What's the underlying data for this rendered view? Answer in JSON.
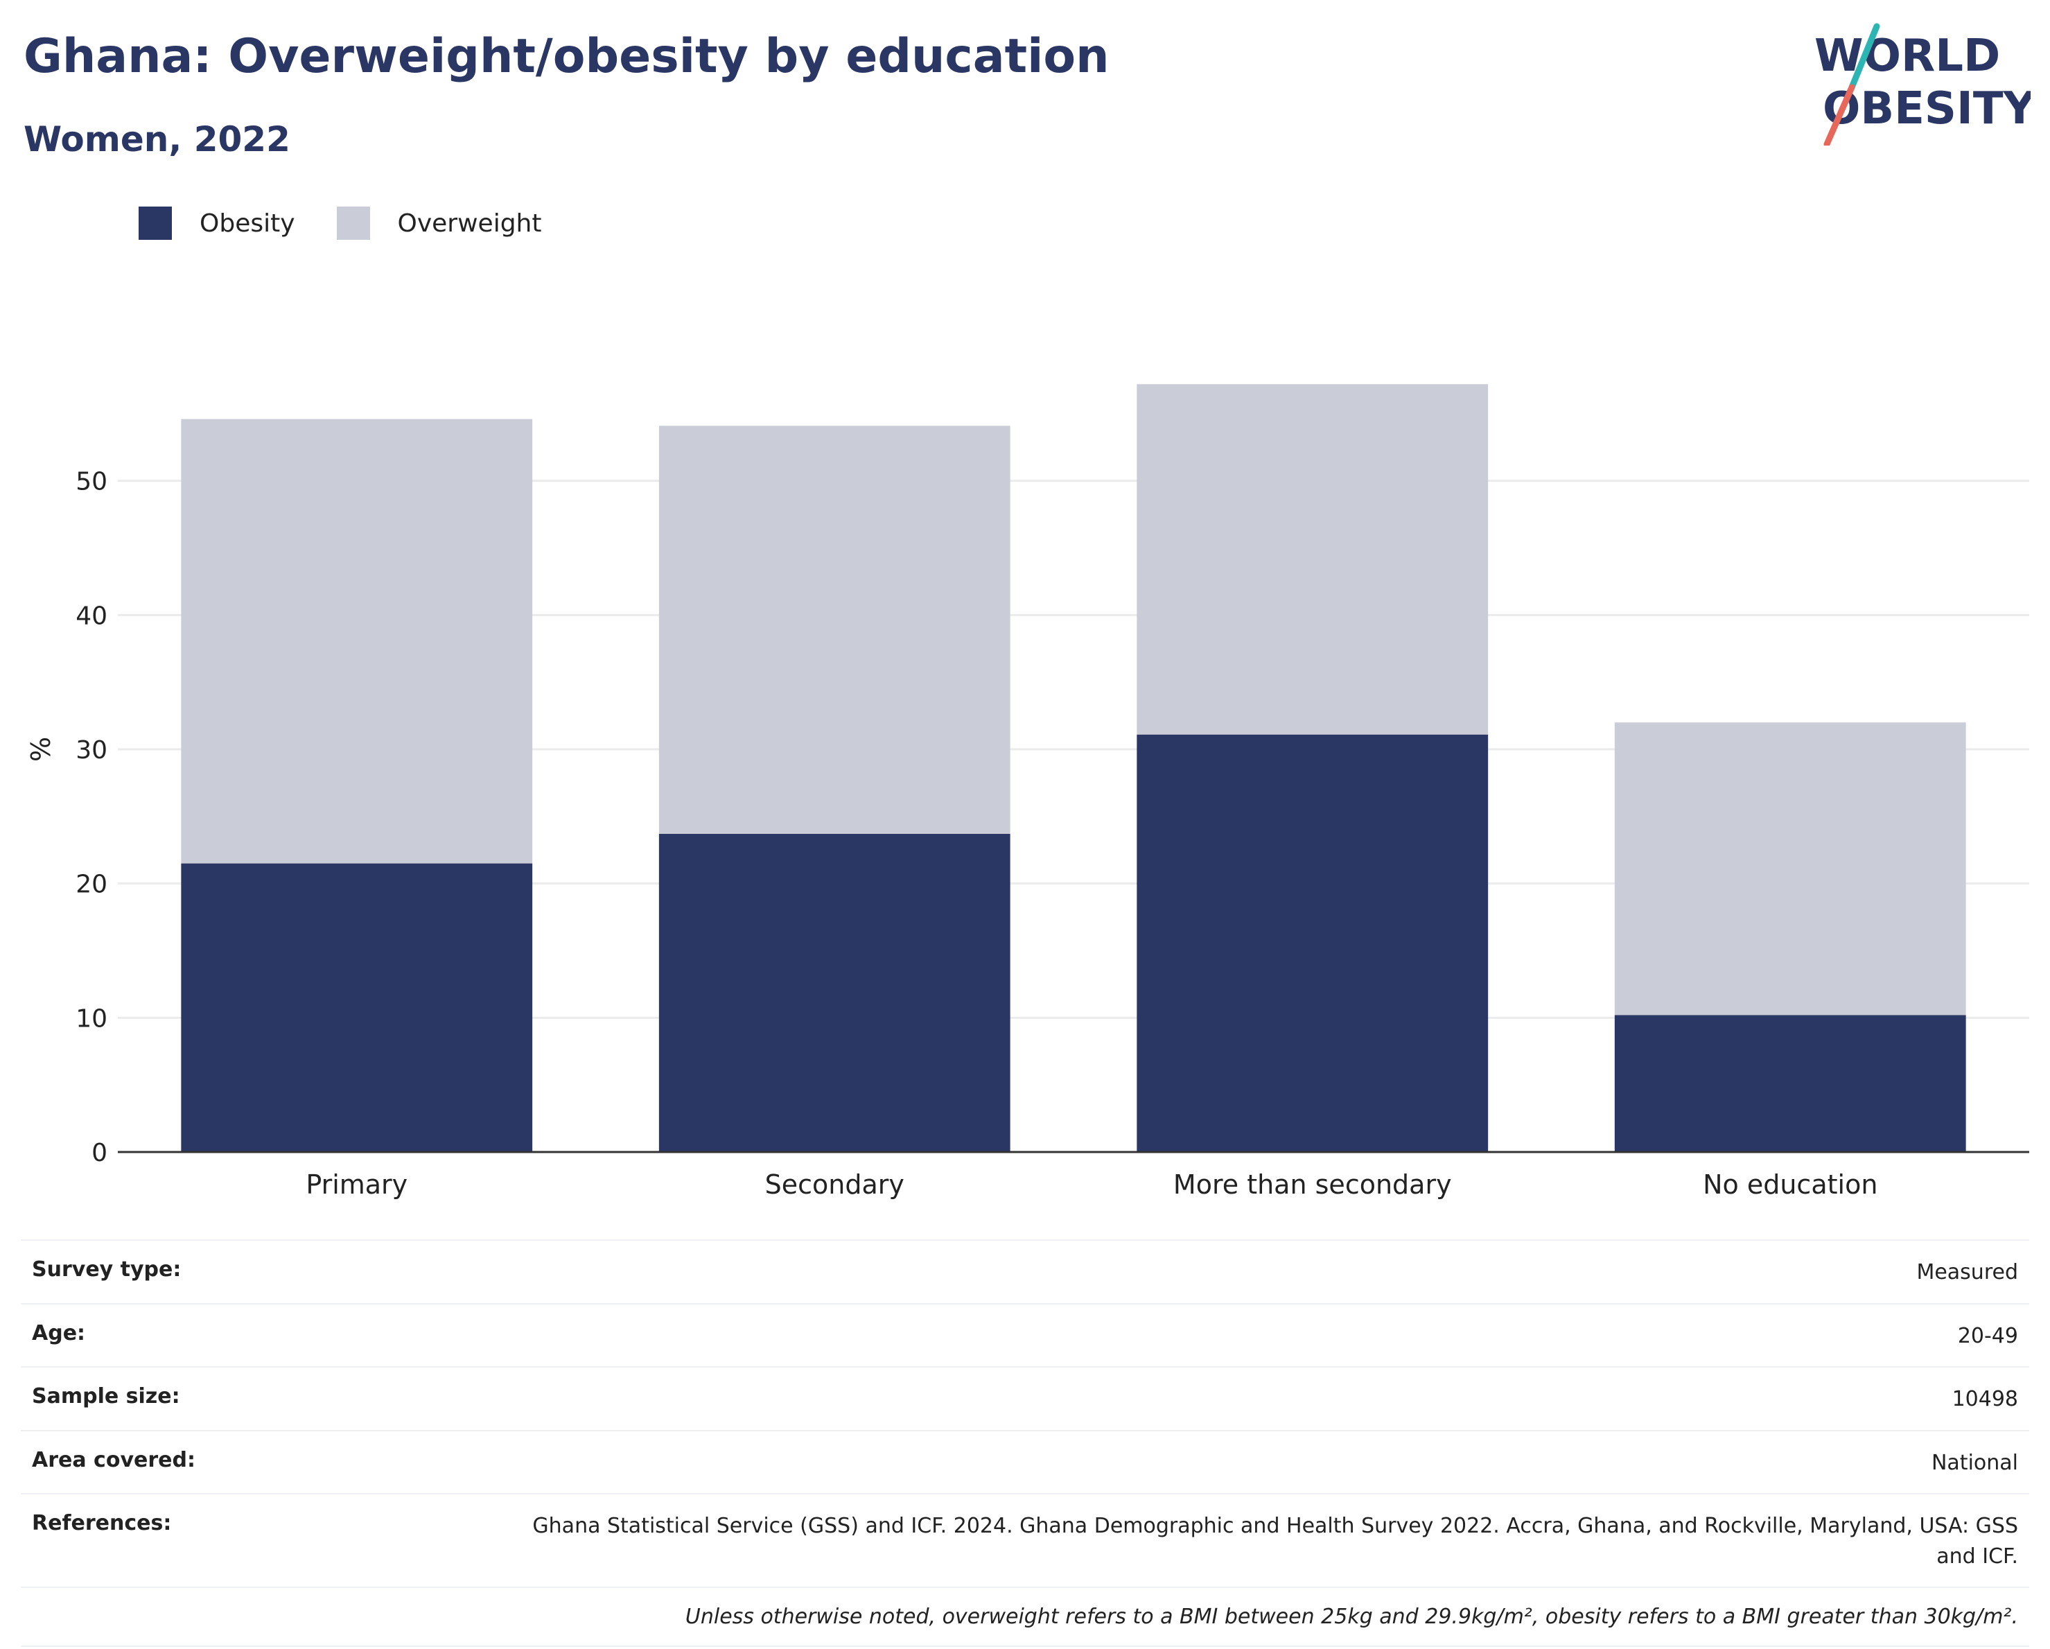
{
  "header": {
    "title": "Ghana: Overweight/obesity by education",
    "subtitle": "Women, 2022"
  },
  "logo": {
    "line1": "WORLD",
    "line2": "OBESITY",
    "colors": {
      "text": "#2a3663",
      "teal": "#2cb5b2",
      "coral": "#e7685a"
    }
  },
  "legend": [
    {
      "label": "Obesity",
      "color": "#2a3663"
    },
    {
      "label": "Overweight",
      "color": "#cacdd8"
    }
  ],
  "chart_data": {
    "type": "bar",
    "stacked": true,
    "categories": [
      "Primary",
      "Secondary",
      "More than secondary",
      "No education"
    ],
    "series": [
      {
        "name": "Obesity",
        "color": "#2a3663",
        "values": [
          21.5,
          23.7,
          31.1,
          10.2
        ]
      },
      {
        "name": "Overweight",
        "color": "#cacdd8",
        "values": [
          33.1,
          30.4,
          26.1,
          21.8
        ]
      }
    ],
    "ylabel": "%",
    "ylim": [
      0,
      60
    ],
    "yticks": [
      0,
      10,
      20,
      30,
      40,
      50
    ],
    "grid": true,
    "legend_position": "top-left"
  },
  "info": [
    {
      "label": "Survey type:",
      "value": "Measured"
    },
    {
      "label": "Age:",
      "value": "20-49"
    },
    {
      "label": "Sample size:",
      "value": "10498"
    },
    {
      "label": "Area covered:",
      "value": "National"
    },
    {
      "label": "References:",
      "value": "Ghana Statistical Service (GSS) and ICF. 2024. Ghana Demographic and Health Survey 2022. Accra, Ghana, and Rockville, Maryland, USA: GSS and ICF."
    }
  ],
  "note": "Unless otherwise noted, overweight refers to a BMI between 25kg and 29.9kg/m², obesity refers to a BMI greater than 30kg/m²."
}
